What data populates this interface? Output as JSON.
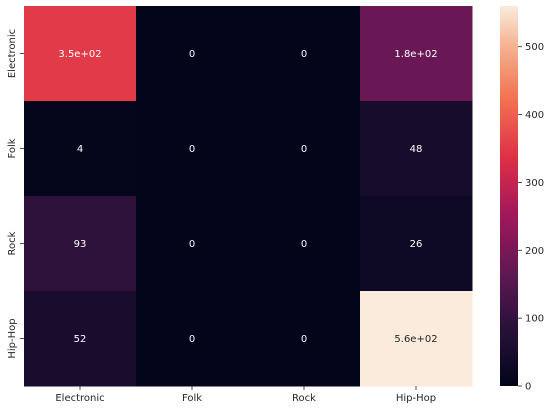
{
  "chart_data": {
    "type": "heatmap",
    "title": "",
    "xlabel": "",
    "ylabel": "",
    "x_categories": [
      "Electronic",
      "Folk",
      "Rock",
      "Hip-Hop"
    ],
    "y_categories": [
      "Electronic",
      "Folk",
      "Rock",
      "Hip-Hop"
    ],
    "values": [
      [
        350,
        0,
        0,
        180
      ],
      [
        4,
        0,
        0,
        48
      ],
      [
        93,
        0,
        0,
        26
      ],
      [
        52,
        0,
        0,
        560
      ]
    ],
    "annotations": [
      [
        "3.5e+02",
        "0",
        "0",
        "1.8e+02"
      ],
      [
        "4",
        "0",
        "0",
        "48"
      ],
      [
        "93",
        "0",
        "0",
        "26"
      ],
      [
        "52",
        "0",
        "0",
        "5.6e+02"
      ]
    ],
    "colormap": "rocket",
    "vmin": 0,
    "vmax": 560,
    "colorbar_ticks": [
      0,
      100,
      200,
      300,
      400,
      500
    ],
    "grid": false,
    "legend": "colorbar-right"
  }
}
